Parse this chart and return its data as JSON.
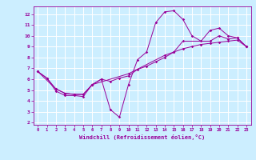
{
  "xlabel": "Windchill (Refroidissement éolien,°C)",
  "bg_color": "#cceeff",
  "line_color": "#990099",
  "grid_color": "#ffffff",
  "xlim": [
    -0.5,
    23.5
  ],
  "ylim": [
    1.8,
    12.7
  ],
  "yticks": [
    2,
    3,
    4,
    5,
    6,
    7,
    8,
    9,
    10,
    11,
    12
  ],
  "xticks": [
    0,
    1,
    2,
    3,
    4,
    5,
    6,
    7,
    8,
    9,
    10,
    11,
    12,
    13,
    14,
    15,
    16,
    17,
    18,
    19,
    20,
    21,
    22,
    23
  ],
  "series": [
    {
      "x": [
        0,
        1,
        2,
        3,
        4,
        5,
        6,
        7,
        8,
        9,
        10,
        11,
        12,
        13,
        14,
        15,
        16,
        17,
        18,
        19,
        20,
        21,
        22,
        23
      ],
      "y": [
        6.7,
        6.1,
        4.9,
        4.5,
        4.5,
        4.4,
        5.5,
        6.0,
        3.2,
        2.5,
        5.5,
        7.8,
        8.5,
        11.2,
        12.2,
        12.3,
        11.5,
        10.0,
        9.5,
        10.5,
        10.7,
        10.0,
        9.8,
        9.0
      ]
    },
    {
      "x": [
        0,
        1,
        2,
        3,
        4,
        5,
        6,
        7,
        8,
        9,
        10,
        11,
        12,
        13,
        14,
        15,
        16,
        17,
        18,
        19,
        20,
        21,
        22,
        23
      ],
      "y": [
        6.7,
        6.1,
        5.1,
        4.7,
        4.6,
        4.6,
        5.5,
        6.0,
        5.8,
        6.1,
        6.3,
        6.9,
        7.2,
        7.6,
        8.0,
        8.5,
        8.8,
        9.0,
        9.2,
        9.3,
        9.4,
        9.5,
        9.6,
        9.0
      ]
    },
    {
      "x": [
        0,
        2,
        3,
        4,
        5,
        6,
        10,
        14,
        15,
        16,
        19,
        20,
        21,
        22,
        23
      ],
      "y": [
        6.7,
        5.1,
        4.7,
        4.6,
        4.6,
        5.5,
        6.5,
        8.2,
        8.5,
        9.5,
        9.5,
        10.0,
        9.7,
        9.8,
        9.0
      ]
    }
  ]
}
